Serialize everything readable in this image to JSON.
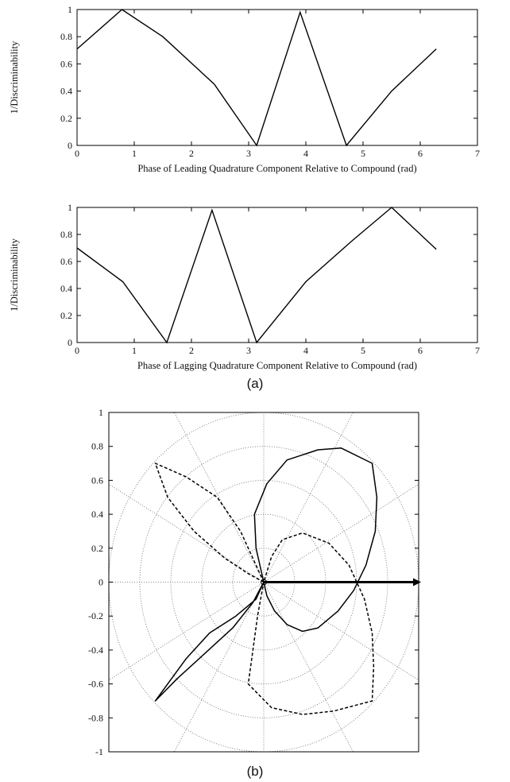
{
  "captions": {
    "a": "(a)",
    "b": "(b)"
  },
  "chart_data": [
    {
      "type": "line",
      "xlabel": "Phase of Leading Quadrature Component Relative to Compound (rad)",
      "ylabel": "1/Discriminability",
      "xlim": [
        0,
        7
      ],
      "ylim": [
        0,
        1
      ],
      "xticks": [
        "0",
        "1",
        "2",
        "3",
        "4",
        "5",
        "6",
        "7"
      ],
      "yticks": [
        "0",
        "0.2",
        "0.4",
        "0.6",
        "0.8",
        "1"
      ],
      "grid": false,
      "series": [
        {
          "x": [
            0,
            0.785,
            1.5,
            2.4,
            3.14,
            3.9,
            4.71,
            5.5,
            6.28
          ],
          "y": [
            0.71,
            1.0,
            0.8,
            0.45,
            0.0,
            0.98,
            0.0,
            0.4,
            0.71
          ]
        }
      ]
    },
    {
      "type": "line",
      "xlabel": "Phase of Lagging Quadrature Component Relative to Compound (rad)",
      "ylabel": "1/Discriminability",
      "xlim": [
        0,
        7
      ],
      "ylim": [
        0,
        1
      ],
      "xticks": [
        "0",
        "1",
        "2",
        "3",
        "4",
        "5",
        "6",
        "7"
      ],
      "yticks": [
        "0",
        "0.2",
        "0.4",
        "0.6",
        "0.8",
        "1"
      ],
      "grid": false,
      "series": [
        {
          "x": [
            0,
            0.8,
            1.57,
            2.36,
            3.14,
            4.0,
            4.8,
            5.5,
            6.28
          ],
          "y": [
            0.7,
            0.45,
            0.0,
            0.98,
            0.0,
            0.45,
            0.75,
            1.0,
            0.69
          ]
        }
      ]
    },
    {
      "type": "line",
      "polar": true,
      "xlim": [
        -1,
        1
      ],
      "ylim": [
        -1,
        1
      ],
      "yticks": [
        "-1",
        "-0.8",
        "-0.6",
        "-0.4",
        "-0.2",
        "0",
        "0.2",
        "0.4",
        "0.6",
        "0.8",
        "1"
      ],
      "grid": true,
      "arrow": {
        "from": [
          0,
          0
        ],
        "to": [
          1,
          0
        ]
      },
      "series": [
        {
          "style": "solid",
          "points": [
            [
              0,
              0
            ],
            [
              -0.05,
              0.2
            ],
            [
              -0.06,
              0.4
            ],
            [
              0.02,
              0.58
            ],
            [
              0.15,
              0.72
            ],
            [
              0.35,
              0.78
            ],
            [
              0.5,
              0.79
            ],
            [
              0.7,
              0.7
            ],
            [
              0.73,
              0.5
            ],
            [
              0.72,
              0.3
            ],
            [
              0.66,
              0.1
            ],
            [
              0.58,
              -0.05
            ],
            [
              0.48,
              -0.17
            ],
            [
              0.35,
              -0.27
            ],
            [
              0.25,
              -0.29
            ],
            [
              0.15,
              -0.25
            ],
            [
              0.07,
              -0.17
            ],
            [
              0.02,
              -0.08
            ],
            [
              0,
              0
            ],
            [
              -0.05,
              -0.1
            ],
            [
              -0.18,
              -0.2
            ],
            [
              -0.35,
              -0.3
            ],
            [
              -0.5,
              -0.45
            ],
            [
              -0.62,
              -0.6
            ],
            [
              -0.7,
              -0.7
            ],
            [
              -0.56,
              -0.57
            ],
            [
              -0.38,
              -0.42
            ],
            [
              -0.2,
              -0.27
            ],
            [
              -0.07,
              -0.12
            ],
            [
              0,
              0
            ]
          ]
        },
        {
          "style": "dashed",
          "points": [
            [
              0,
              0
            ],
            [
              -0.15,
              0.3
            ],
            [
              -0.3,
              0.5
            ],
            [
              -0.5,
              0.62
            ],
            [
              -0.7,
              0.7
            ],
            [
              -0.62,
              0.5
            ],
            [
              -0.45,
              0.3
            ],
            [
              -0.25,
              0.14
            ],
            [
              -0.1,
              0.05
            ],
            [
              0,
              0
            ],
            [
              0.05,
              0.15
            ],
            [
              0.12,
              0.25
            ],
            [
              0.25,
              0.29
            ],
            [
              0.42,
              0.23
            ],
            [
              0.55,
              0.1
            ],
            [
              0.65,
              -0.1
            ],
            [
              0.7,
              -0.3
            ],
            [
              0.71,
              -0.5
            ],
            [
              0.7,
              -0.7
            ],
            [
              0.45,
              -0.76
            ],
            [
              0.25,
              -0.78
            ],
            [
              0.05,
              -0.74
            ],
            [
              -0.1,
              -0.6
            ],
            [
              -0.07,
              -0.4
            ],
            [
              -0.04,
              -0.2
            ],
            [
              0,
              0
            ]
          ]
        }
      ]
    }
  ]
}
